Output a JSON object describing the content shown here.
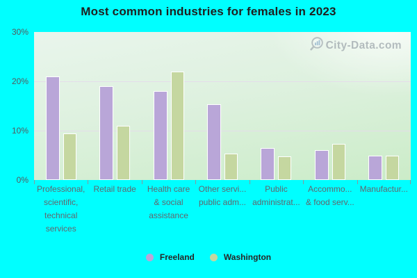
{
  "title": "Most common industries for females in 2023",
  "watermark": {
    "text": "City-Data.com",
    "icon": "magnifier-barchart-icon"
  },
  "colors": {
    "background": "#00ffff",
    "plot_top": "#e9f5ec",
    "plot_bottom": "#cbecc8",
    "gridline": "#e4dbea",
    "freeland": "#b9a6d8",
    "washington": "#c5d7a0",
    "title_text": "#1f1f1f",
    "axis_text": "#54585d",
    "xlabel_text": "#61666e"
  },
  "y_axis": {
    "tick_labels": [
      "30%",
      "20%",
      "10%",
      "0%"
    ],
    "tick_values": [
      30,
      20,
      10,
      0
    ],
    "grid_values": [
      20,
      10
    ],
    "max": 30
  },
  "x_axis": {
    "labels": [
      {
        "lines": [
          "Professional,",
          "scientific,",
          "technical",
          "services"
        ]
      },
      {
        "lines": [
          "Retail trade"
        ]
      },
      {
        "lines": [
          "Health care",
          "& social",
          "assistance"
        ]
      },
      {
        "lines": [
          "Other servi...",
          "public adm..."
        ]
      },
      {
        "lines": [
          "Public",
          "administrat..."
        ]
      },
      {
        "lines": [
          "Accommo...",
          "& food serv..."
        ]
      },
      {
        "lines": [
          "Manufactur..."
        ]
      }
    ]
  },
  "legend": [
    {
      "label": "Freeland",
      "color": "#b9a6d8"
    },
    {
      "label": "Washington",
      "color": "#c5d7a0"
    }
  ],
  "chart_data": {
    "type": "bar",
    "title": "Most common industries for females in 2023",
    "categories": [
      "Professional, scientific, technical services",
      "Retail trade",
      "Health care & social assistance",
      "Other servi... public adm...",
      "Public administrat...",
      "Accommo... & food serv...",
      "Manufactur..."
    ],
    "series": [
      {
        "name": "Freeland",
        "color": "#b9a6d8",
        "values": [
          21,
          19,
          18,
          15.3,
          6.5,
          6.1,
          4.9
        ]
      },
      {
        "name": "Washington",
        "color": "#c5d7a0",
        "values": [
          9.5,
          11,
          22,
          5.3,
          4.8,
          7.3,
          4.9
        ]
      }
    ],
    "xlabel": "",
    "ylabel": "",
    "ylim": [
      0,
      30
    ],
    "ytick_labels": [
      "0%",
      "10%",
      "20%",
      "30%"
    ],
    "grid": true,
    "legend_position": "bottom"
  }
}
